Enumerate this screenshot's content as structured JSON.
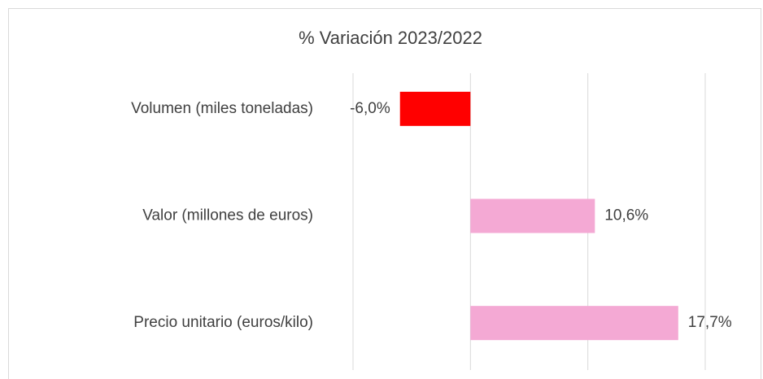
{
  "chart_data": {
    "type": "barh",
    "title": "% Variación  2023/2022",
    "categories": [
      "Volumen (miles toneladas)",
      "Valor (millones de euros)",
      "Precio unitario (euros/kilo)"
    ],
    "values": [
      -6.0,
      10.6,
      17.7
    ],
    "value_labels": [
      "-6,0%",
      "10,6%",
      "17,7%"
    ],
    "colors": [
      "#ff0000",
      "#f4a9d4",
      "#f4a9d4"
    ],
    "xlim": [
      -10,
      20
    ],
    "xticks": [
      -10,
      0,
      10,
      20
    ],
    "grid": true
  }
}
